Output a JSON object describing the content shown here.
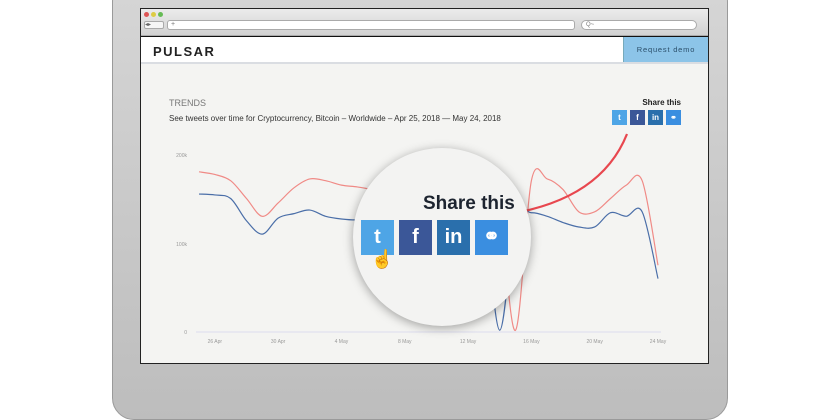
{
  "browser": {
    "url": "+",
    "search_placeholder": "Q~"
  },
  "header": {
    "logo": "PULSAR",
    "cta": "Request demo"
  },
  "main": {
    "section": "TRENDS",
    "subtitle": "See tweets over time for Cryptocurrency, Bitcoin – Worldwide – Apr 25, 2018 — May 24, 2018",
    "share_label": "Share this",
    "share_buttons": [
      {
        "label": "t",
        "icon": "twitter-icon"
      },
      {
        "label": "f",
        "icon": "facebook-icon"
      },
      {
        "label": "in",
        "icon": "linkedin-icon"
      },
      {
        "label": "⚭",
        "icon": "link-icon"
      }
    ]
  },
  "magnifier": {
    "share_label": "Share this"
  },
  "colors": {
    "red": "#f08a86",
    "blue": "#4a6ea8",
    "cta": "#8cc4e8",
    "arrow": "#e8474f"
  },
  "chart_data": {
    "type": "line",
    "ylim": [
      0,
      200000
    ],
    "yticks": [
      "0",
      "100k",
      "200k"
    ],
    "xticks": [
      "26 Apr",
      "30 Apr",
      "4 May",
      "8 May",
      "12 May",
      "16 May",
      "20 May",
      "24 May"
    ],
    "x": [
      "Apr 25",
      "Apr 26",
      "Apr 27",
      "Apr 28",
      "Apr 29",
      "Apr 30",
      "May 1",
      "May 2",
      "May 3",
      "May 4",
      "May 5",
      "May 6",
      "May 7",
      "May 8",
      "May 9",
      "May 10",
      "May 11",
      "May 12",
      "May 13",
      "May 14",
      "May 15",
      "May 16",
      "May 17",
      "May 18",
      "May 19",
      "May 20",
      "May 21",
      "May 22",
      "May 23",
      "May 24"
    ],
    "series": [
      {
        "color": "#f08a86",
        "values": [
          180000,
          177000,
          170000,
          150000,
          130000,
          145000,
          162000,
          172000,
          170000,
          165000,
          163000,
          160000,
          158000,
          160000,
          165000,
          162000,
          160000,
          158000,
          150000,
          130000,
          2000,
          170000,
          172000,
          160000,
          135000,
          135000,
          150000,
          165000,
          170000,
          75000
        ]
      },
      {
        "color": "#4a6ea8",
        "values": [
          155000,
          154000,
          150000,
          125000,
          110000,
          128000,
          133000,
          137000,
          130000,
          127000,
          126000,
          128000,
          130000,
          129000,
          130000,
          131000,
          132000,
          133000,
          130000,
          2000,
          128000,
          134000,
          130000,
          123000,
          118000,
          118000,
          134000,
          130000,
          135000,
          60000
        ]
      }
    ]
  }
}
